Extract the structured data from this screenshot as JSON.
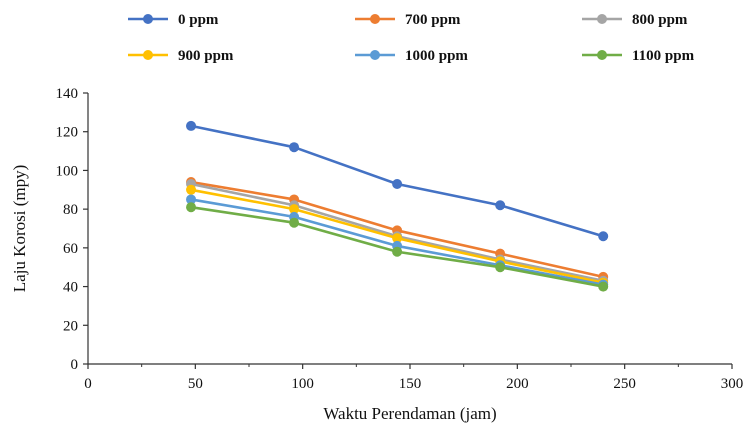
{
  "chart_data": {
    "type": "line",
    "title": "",
    "xlabel": "Waktu Perendaman (jam)",
    "ylabel": "Laju Korosi (mpy)",
    "xlim": [
      0,
      300
    ],
    "ylim": [
      0,
      140
    ],
    "x_ticks": [
      0,
      50,
      100,
      150,
      200,
      250,
      300
    ],
    "y_ticks": [
      0,
      20,
      40,
      60,
      80,
      100,
      120,
      140
    ],
    "x_tick_labels": [
      "0",
      "50",
      "100",
      "150",
      "200",
      "250",
      "300"
    ],
    "y_tick_labels": [
      "0",
      "20",
      "40",
      "60",
      "80",
      "100",
      "120",
      "140"
    ],
    "grid": false,
    "legend_position": "top",
    "x": [
      48,
      96,
      144,
      192,
      240
    ],
    "series": [
      {
        "name": "0 ppm",
        "color": "#4472C4",
        "values": [
          123,
          112,
          93,
          82,
          66
        ]
      },
      {
        "name": "700 ppm",
        "color": "#ED7D31",
        "values": [
          94,
          85,
          69,
          57,
          45
        ]
      },
      {
        "name": "800 ppm",
        "color": "#A5A5A5",
        "values": [
          93,
          82,
          66,
          54,
          43
        ]
      },
      {
        "name": "900 ppm",
        "color": "#FFC000",
        "values": [
          90,
          80,
          65,
          53,
          42
        ]
      },
      {
        "name": "1000 ppm",
        "color": "#5B9BD5",
        "values": [
          85,
          76,
          61,
          51,
          41
        ]
      },
      {
        "name": "1100 ppm",
        "color": "#70AD47",
        "values": [
          81,
          73,
          58,
          50,
          40
        ]
      }
    ]
  }
}
